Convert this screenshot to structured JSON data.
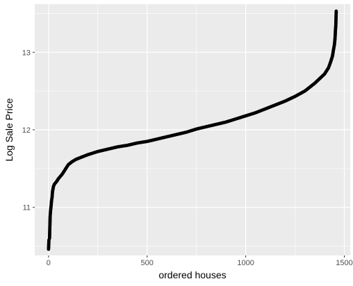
{
  "chart_data": {
    "type": "scatter",
    "title": "",
    "xlabel": "ordered houses",
    "ylabel": "Log Sale Price",
    "xlim": [
      -70,
      1530
    ],
    "ylim": [
      10.38,
      13.62
    ],
    "xticks": [
      0,
      500,
      1000,
      1500
    ],
    "xtick_labels": [
      "0",
      "500",
      "1000",
      "1500"
    ],
    "yticks": [
      11,
      12,
      13
    ],
    "ytick_labels": [
      "11",
      "12",
      "13"
    ],
    "grid": true,
    "legend": "none",
    "point_color": "#000000",
    "panel_color": "#ebebeb",
    "grid_color": "#ffffff",
    "n_points": 1460,
    "series": [
      {
        "x": [
          0,
          2,
          5,
          8,
          10,
          13,
          15,
          18,
          20,
          25,
          30,
          40,
          50,
          60,
          70,
          80,
          90,
          100,
          120,
          140,
          160,
          180,
          200,
          250,
          300,
          350,
          400,
          450,
          500,
          550,
          600,
          650,
          700,
          750,
          800,
          850,
          900,
          950,
          1000,
          1050,
          1100,
          1150,
          1200,
          1250,
          1300,
          1325,
          1350,
          1375,
          1400,
          1410,
          1420,
          1430,
          1440,
          1445,
          1450,
          1453,
          1455,
          1457,
          1459
        ],
        "y": [
          10.46,
          10.58,
          10.6,
          10.88,
          10.95,
          11.02,
          11.08,
          11.13,
          11.2,
          11.27,
          11.3,
          11.33,
          11.37,
          11.4,
          11.43,
          11.47,
          11.51,
          11.55,
          11.59,
          11.62,
          11.64,
          11.66,
          11.68,
          11.72,
          11.75,
          11.78,
          11.8,
          11.83,
          11.85,
          11.88,
          11.91,
          11.94,
          11.97,
          12.01,
          12.04,
          12.07,
          12.1,
          12.14,
          12.18,
          12.22,
          12.27,
          12.32,
          12.37,
          12.43,
          12.5,
          12.55,
          12.6,
          12.66,
          12.72,
          12.76,
          12.8,
          12.87,
          12.95,
          13.03,
          13.1,
          13.18,
          13.28,
          13.35,
          13.53
        ]
      }
    ]
  }
}
